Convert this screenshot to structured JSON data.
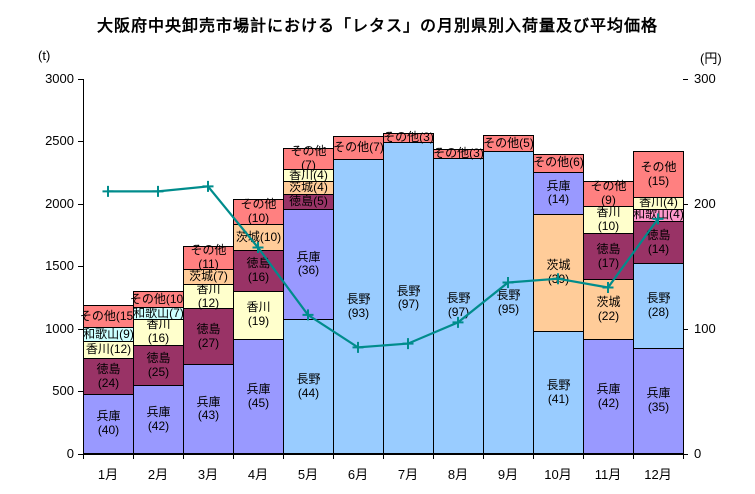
{
  "chart_data": {
    "type": "stacked-bar-line-combo",
    "title": "大阪府中央卸売市場計における「レタス」の月別県別入荷量及び平均価格",
    "categories": [
      "1月",
      "2月",
      "3月",
      "4月",
      "5月",
      "6月",
      "7月",
      "8月",
      "9月",
      "10月",
      "11月",
      "12月"
    ],
    "left_axis": {
      "unit": "(t)",
      "ticks": [
        0,
        500,
        1000,
        1500,
        2000,
        2500,
        3000
      ],
      "max": 3000
    },
    "right_axis": {
      "unit": "(円)",
      "ticks": [
        0,
        100,
        200,
        300
      ],
      "max": 300
    },
    "grid": "off",
    "legend": "none",
    "bar_note": "segment values are percentage share labels; bar height is total tonnage",
    "bars": [
      {
        "month": "1月",
        "total_t": 1190,
        "segments": [
          {
            "name": "兵庫",
            "pct": 40,
            "color": "#9999FF",
            "label_lines": [
              "兵庫",
              "(40)"
            ]
          },
          {
            "name": "徳島",
            "pct": 24,
            "color": "#993366",
            "label_lines": [
              "徳島",
              "(24)"
            ]
          },
          {
            "name": "香川",
            "pct": 12,
            "color": "#FFFFCC",
            "label_lines": [
              "香川(12)"
            ]
          },
          {
            "name": "和歌山",
            "pct": 9,
            "color": "#CCFFFF",
            "label_lines": [
              "和歌山(9)"
            ]
          },
          {
            "name": "その他",
            "pct": 15,
            "color": "#FF8080",
            "label_lines": [
              "その他(15)"
            ]
          }
        ]
      },
      {
        "month": "2月",
        "total_t": 1300,
        "segments": [
          {
            "name": "兵庫",
            "pct": 42,
            "color": "#9999FF",
            "label_lines": [
              "兵庫",
              "(42)"
            ]
          },
          {
            "name": "徳島",
            "pct": 25,
            "color": "#993366",
            "label_lines": [
              "徳島",
              "(25)"
            ]
          },
          {
            "name": "香川",
            "pct": 16,
            "color": "#FFFFCC",
            "label_lines": [
              "香川",
              "(16)"
            ]
          },
          {
            "name": "和歌山",
            "pct": 7,
            "color": "#CCFFFF",
            "label_lines": [
              "和歌山(7)"
            ]
          },
          {
            "name": "その他",
            "pct": 10,
            "color": "#FF8080",
            "label_lines": [
              "その他(10)"
            ]
          }
        ]
      },
      {
        "month": "3月",
        "total_t": 1660,
        "segments": [
          {
            "name": "兵庫",
            "pct": 43,
            "color": "#9999FF",
            "label_lines": [
              "兵庫",
              "(43)"
            ]
          },
          {
            "name": "徳島",
            "pct": 27,
            "color": "#993366",
            "label_lines": [
              "徳島",
              "(27)"
            ]
          },
          {
            "name": "香川",
            "pct": 12,
            "color": "#FFFFCC",
            "label_lines": [
              "香川",
              "(12)"
            ]
          },
          {
            "name": "茨城",
            "pct": 7,
            "color": "#FFCC99",
            "label_lines": [
              "茨城(7)"
            ]
          },
          {
            "name": "その他",
            "pct": 11,
            "color": "#FF8080",
            "label_lines": [
              "その他",
              "(11)"
            ]
          }
        ]
      },
      {
        "month": "4月",
        "total_t": 2040,
        "segments": [
          {
            "name": "兵庫",
            "pct": 45,
            "color": "#9999FF",
            "label_lines": [
              "兵庫",
              "(45)"
            ]
          },
          {
            "name": "香川",
            "pct": 19,
            "color": "#FFFFCC",
            "label_lines": [
              "香川",
              "(19)"
            ]
          },
          {
            "name": "徳島",
            "pct": 16,
            "color": "#993366",
            "label_lines": [
              "徳島",
              "(16)"
            ]
          },
          {
            "name": "茨城",
            "pct": 10,
            "color": "#FFCC99",
            "label_lines": [
              "茨城(10)"
            ]
          },
          {
            "name": "その他",
            "pct": 10,
            "color": "#FF8080",
            "label_lines": [
              "その他",
              "(10)"
            ]
          }
        ]
      },
      {
        "month": "5月",
        "total_t": 2450,
        "segments": [
          {
            "name": "長野",
            "pct": 44,
            "color": "#99CCFF",
            "label_lines": [
              "長野",
              "(44)"
            ]
          },
          {
            "name": "兵庫",
            "pct": 36,
            "color": "#9999FF",
            "label_lines": [
              "兵庫",
              "(36)"
            ]
          },
          {
            "name": "徳島",
            "pct": 5,
            "color": "#993366",
            "label_lines": [
              "徳島(5)"
            ]
          },
          {
            "name": "茨城",
            "pct": 4,
            "color": "#FFCC99",
            "label_lines": [
              "茨城(4)"
            ]
          },
          {
            "name": "香川",
            "pct": 4,
            "color": "#FFFFCC",
            "label_lines": [
              "香川(4)"
            ]
          },
          {
            "name": "その他",
            "pct": 7,
            "color": "#FF8080",
            "label_lines": [
              "その他",
              "(7)"
            ]
          }
        ]
      },
      {
        "month": "6月",
        "total_t": 2540,
        "segments": [
          {
            "name": "長野",
            "pct": 93,
            "color": "#99CCFF",
            "label_lines": [
              "長野",
              "(93)"
            ]
          },
          {
            "name": "その他",
            "pct": 7,
            "color": "#FF8080",
            "label_lines": [
              "その他(7)"
            ]
          }
        ]
      },
      {
        "month": "7月",
        "total_t": 2570,
        "segments": [
          {
            "name": "長野",
            "pct": 97,
            "color": "#99CCFF",
            "label_lines": [
              "長野",
              "(97)"
            ]
          },
          {
            "name": "その他",
            "pct": 3,
            "color": "#FF8080",
            "label_lines": [
              "その他(3)"
            ]
          }
        ]
      },
      {
        "month": "8月",
        "total_t": 2440,
        "segments": [
          {
            "name": "長野",
            "pct": 97,
            "color": "#99CCFF",
            "label_lines": [
              "長野",
              "(97)"
            ]
          },
          {
            "name": "その他",
            "pct": 3,
            "color": "#FF8080",
            "label_lines": [
              "その他(3)"
            ]
          }
        ]
      },
      {
        "month": "9月",
        "total_t": 2550,
        "segments": [
          {
            "name": "長野",
            "pct": 95,
            "color": "#99CCFF",
            "label_lines": [
              "長野",
              "(95)"
            ]
          },
          {
            "name": "その他",
            "pct": 5,
            "color": "#FF8080",
            "label_lines": [
              "その他(5)"
            ]
          }
        ]
      },
      {
        "month": "10月",
        "total_t": 2400,
        "segments": [
          {
            "name": "長野",
            "pct": 41,
            "color": "#99CCFF",
            "label_lines": [
              "長野",
              "(41)"
            ]
          },
          {
            "name": "茨城",
            "pct": 39,
            "color": "#FFCC99",
            "label_lines": [
              "茨城",
              "(39)"
            ]
          },
          {
            "name": "兵庫",
            "pct": 14,
            "color": "#9999FF",
            "label_lines": [
              "兵庫",
              "(14)"
            ]
          },
          {
            "name": "その他",
            "pct": 6,
            "color": "#FF8080",
            "label_lines": [
              "その他(6)"
            ]
          }
        ]
      },
      {
        "month": "11月",
        "total_t": 2180,
        "segments": [
          {
            "name": "兵庫",
            "pct": 42,
            "color": "#9999FF",
            "label_lines": [
              "兵庫",
              "(42)"
            ]
          },
          {
            "name": "茨城",
            "pct": 22,
            "color": "#FFCC99",
            "label_lines": [
              "茨城",
              "(22)"
            ]
          },
          {
            "name": "徳島",
            "pct": 17,
            "color": "#993366",
            "label_lines": [
              "徳島",
              "(17)"
            ]
          },
          {
            "name": "香川",
            "pct": 10,
            "color": "#FFFFCC",
            "label_lines": [
              "香川",
              "(10)"
            ]
          },
          {
            "name": "その他",
            "pct": 9,
            "color": "#FF8080",
            "label_lines": [
              "その他",
              "(9)"
            ]
          }
        ]
      },
      {
        "month": "12月",
        "total_t": 2420,
        "segments": [
          {
            "name": "兵庫",
            "pct": 35,
            "color": "#9999FF",
            "label_lines": [
              "兵庫",
              "(35)"
            ]
          },
          {
            "name": "長野",
            "pct": 28,
            "color": "#99CCFF",
            "label_lines": [
              "長野",
              "(28)"
            ]
          },
          {
            "name": "徳島",
            "pct": 14,
            "color": "#993366",
            "label_lines": [
              "徳島",
              "(14)"
            ]
          },
          {
            "name": "和歌山",
            "pct": 4,
            "color": "#FF99CC",
            "label_lines": [
              "和歌山(4)"
            ]
          },
          {
            "name": "香川",
            "pct": 4,
            "color": "#FFFFCC",
            "label_lines": [
              "香川(4)"
            ]
          },
          {
            "name": "その他",
            "pct": 15,
            "color": "#FF8080",
            "label_lines": [
              "その他",
              "(15)"
            ]
          }
        ]
      }
    ],
    "line": {
      "name": "平均価格",
      "unit": "円",
      "color": "#008C8C",
      "marker": "plus",
      "values": [
        210,
        210,
        214,
        165,
        111,
        85,
        88,
        105,
        137,
        140,
        133,
        188
      ]
    }
  }
}
